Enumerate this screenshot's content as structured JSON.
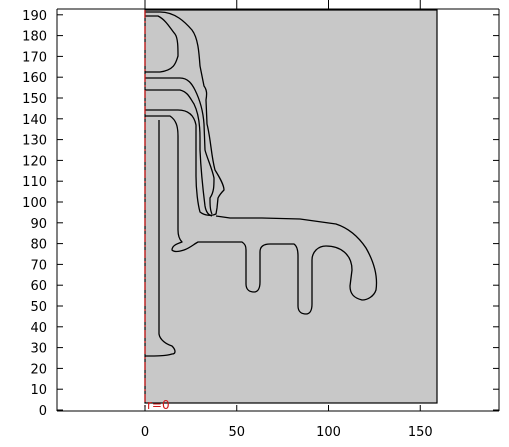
{
  "x_axis": {
    "ticks": [
      {
        "value": 0,
        "label": "0"
      },
      {
        "value": 50,
        "label": "50"
      },
      {
        "value": 100,
        "label": "100"
      },
      {
        "value": 150,
        "label": "150"
      }
    ]
  },
  "y_axis": {
    "ticks": [
      {
        "value": 0,
        "label": "0"
      },
      {
        "value": 10,
        "label": "10"
      },
      {
        "value": 20,
        "label": "20"
      },
      {
        "value": 30,
        "label": "30"
      },
      {
        "value": 40,
        "label": "40"
      },
      {
        "value": 50,
        "label": "50"
      },
      {
        "value": 60,
        "label": "60"
      },
      {
        "value": 70,
        "label": "70"
      },
      {
        "value": 80,
        "label": "80"
      },
      {
        "value": 90,
        "label": "90"
      },
      {
        "value": 100,
        "label": "100"
      },
      {
        "value": 110,
        "label": "110"
      },
      {
        "value": 120,
        "label": "120"
      },
      {
        "value": 130,
        "label": "130"
      },
      {
        "value": 140,
        "label": "140"
      },
      {
        "value": 150,
        "label": "150"
      },
      {
        "value": 160,
        "label": "160"
      },
      {
        "value": 170,
        "label": "170"
      },
      {
        "value": 180,
        "label": "180"
      },
      {
        "value": 190,
        "label": "190"
      }
    ]
  },
  "symmetry_axis": {
    "label": "r=0"
  },
  "domain": {
    "x_range": [
      0,
      160
    ],
    "y_range": [
      0,
      192
    ]
  },
  "colors": {
    "domain_fill": "#c8c8c8",
    "outline": "#000000",
    "symmetry_axis": "#d01818",
    "background": "#ffffff"
  }
}
